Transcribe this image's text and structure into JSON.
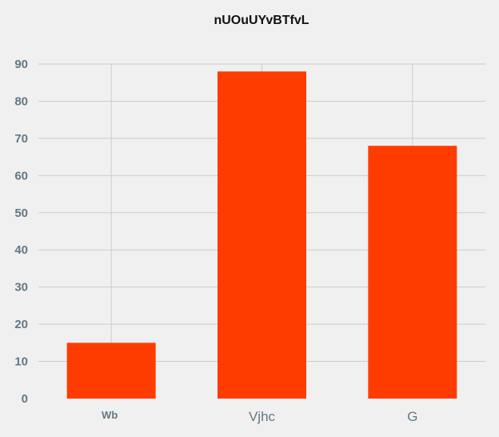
{
  "chart_data": {
    "type": "bar",
    "title": "nUOuUYvBTfvL",
    "categories": [
      "Wb",
      "Vjhc",
      "G"
    ],
    "values": [
      15,
      88,
      68
    ],
    "xlabel": "",
    "ylabel": "",
    "ylim": [
      0,
      90
    ],
    "yticks": [
      0,
      10,
      20,
      30,
      40,
      50,
      60,
      70,
      80,
      90
    ],
    "grid": true,
    "bar_color": "#ff3c00",
    "grid_color": "#cccccc",
    "tick_color": "#637784",
    "background": "#f0f0f0"
  }
}
